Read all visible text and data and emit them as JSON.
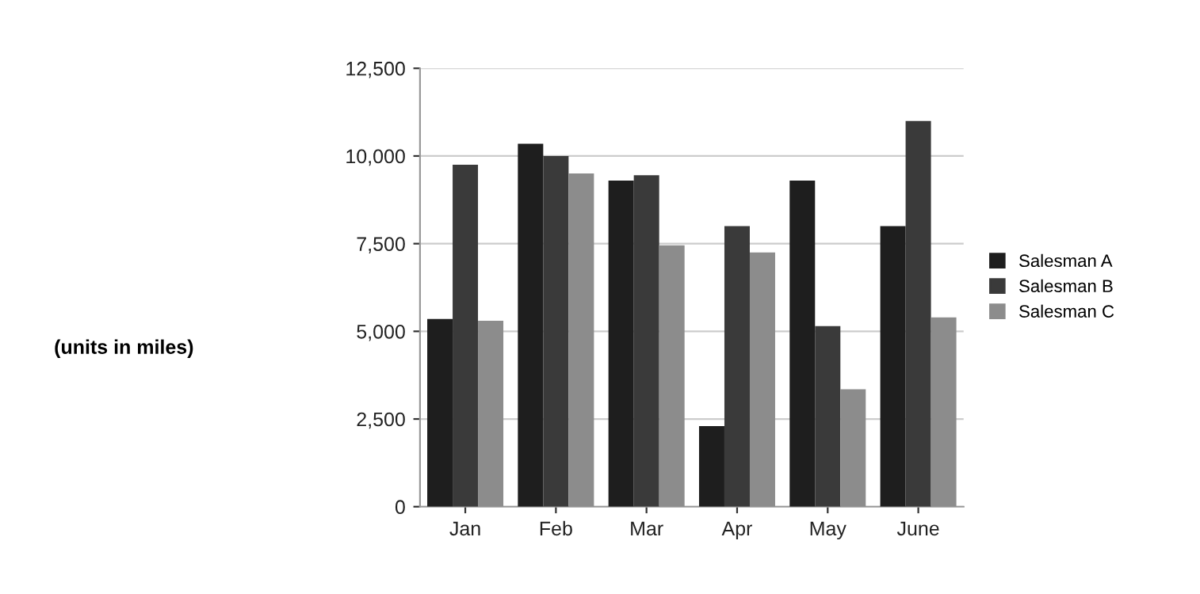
{
  "chart_data": {
    "type": "bar",
    "categories": [
      "Jan",
      "Feb",
      "Mar",
      "Apr",
      "May",
      "June"
    ],
    "series": [
      {
        "name": "Salesman A",
        "color": "#1e1e1e",
        "values": [
          5350,
          10350,
          9300,
          2300,
          9300,
          8000
        ]
      },
      {
        "name": "Salesman B",
        "color": "#3a3a3a",
        "values": [
          9750,
          10000,
          9450,
          8000,
          5150,
          11000
        ]
      },
      {
        "name": "Salesman C",
        "color": "#8c8c8c",
        "values": [
          5300,
          9500,
          7450,
          7250,
          3350,
          5400
        ]
      }
    ],
    "ylim": [
      0,
      12500
    ],
    "yticks": [
      {
        "value": 0,
        "label": "0"
      },
      {
        "value": 2500,
        "label": "2,500"
      },
      {
        "value": 5000,
        "label": "5,000"
      },
      {
        "value": 7500,
        "label": "7,500"
      },
      {
        "value": 10000,
        "label": "10,000"
      },
      {
        "value": 12500,
        "label": "12,500"
      }
    ],
    "grid": "y",
    "legend": "right",
    "annotations": [
      "(units in miles)"
    ]
  }
}
